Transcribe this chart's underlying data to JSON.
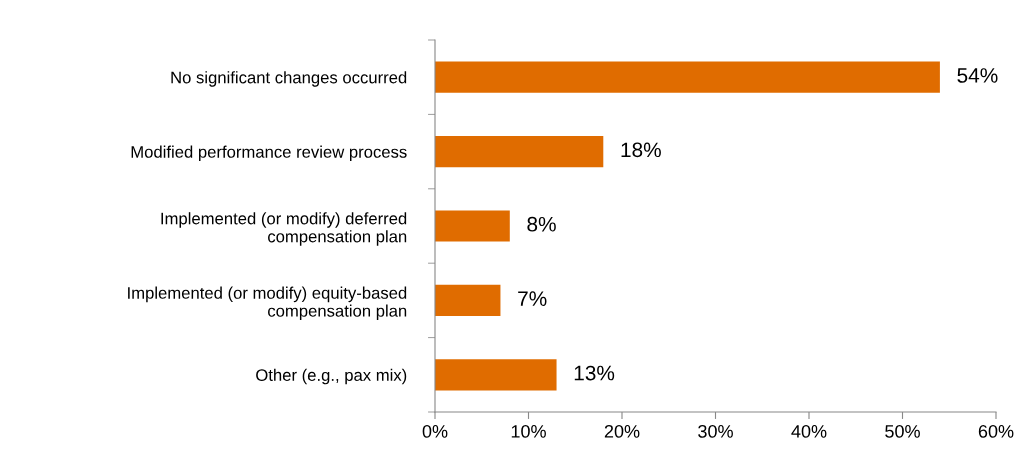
{
  "chart_data": {
    "type": "bar",
    "orientation": "horizontal",
    "categories": [
      "No significant changes occurred",
      "Modified performance review process",
      "Implemented (or modify) deferred\ncompensation plan",
      "Implemented (or modify) equity-based\ncompensation plan",
      "Other (e.g., pax mix)"
    ],
    "values": [
      54,
      18,
      8,
      7,
      13
    ],
    "value_labels": [
      "54%",
      "18%",
      "8%",
      "7%",
      "13%"
    ],
    "color": "#e06c00",
    "xlim": [
      0,
      60
    ],
    "xticks": [
      {
        "value": 0,
        "label": "0%"
      },
      {
        "value": 10,
        "label": "10%"
      },
      {
        "value": 20,
        "label": "20%"
      },
      {
        "value": 30,
        "label": "30%"
      },
      {
        "value": 40,
        "label": "40%"
      },
      {
        "value": 50,
        "label": "50%"
      },
      {
        "value": 60,
        "label": "60%"
      }
    ],
    "grid": false,
    "legend": false
  }
}
